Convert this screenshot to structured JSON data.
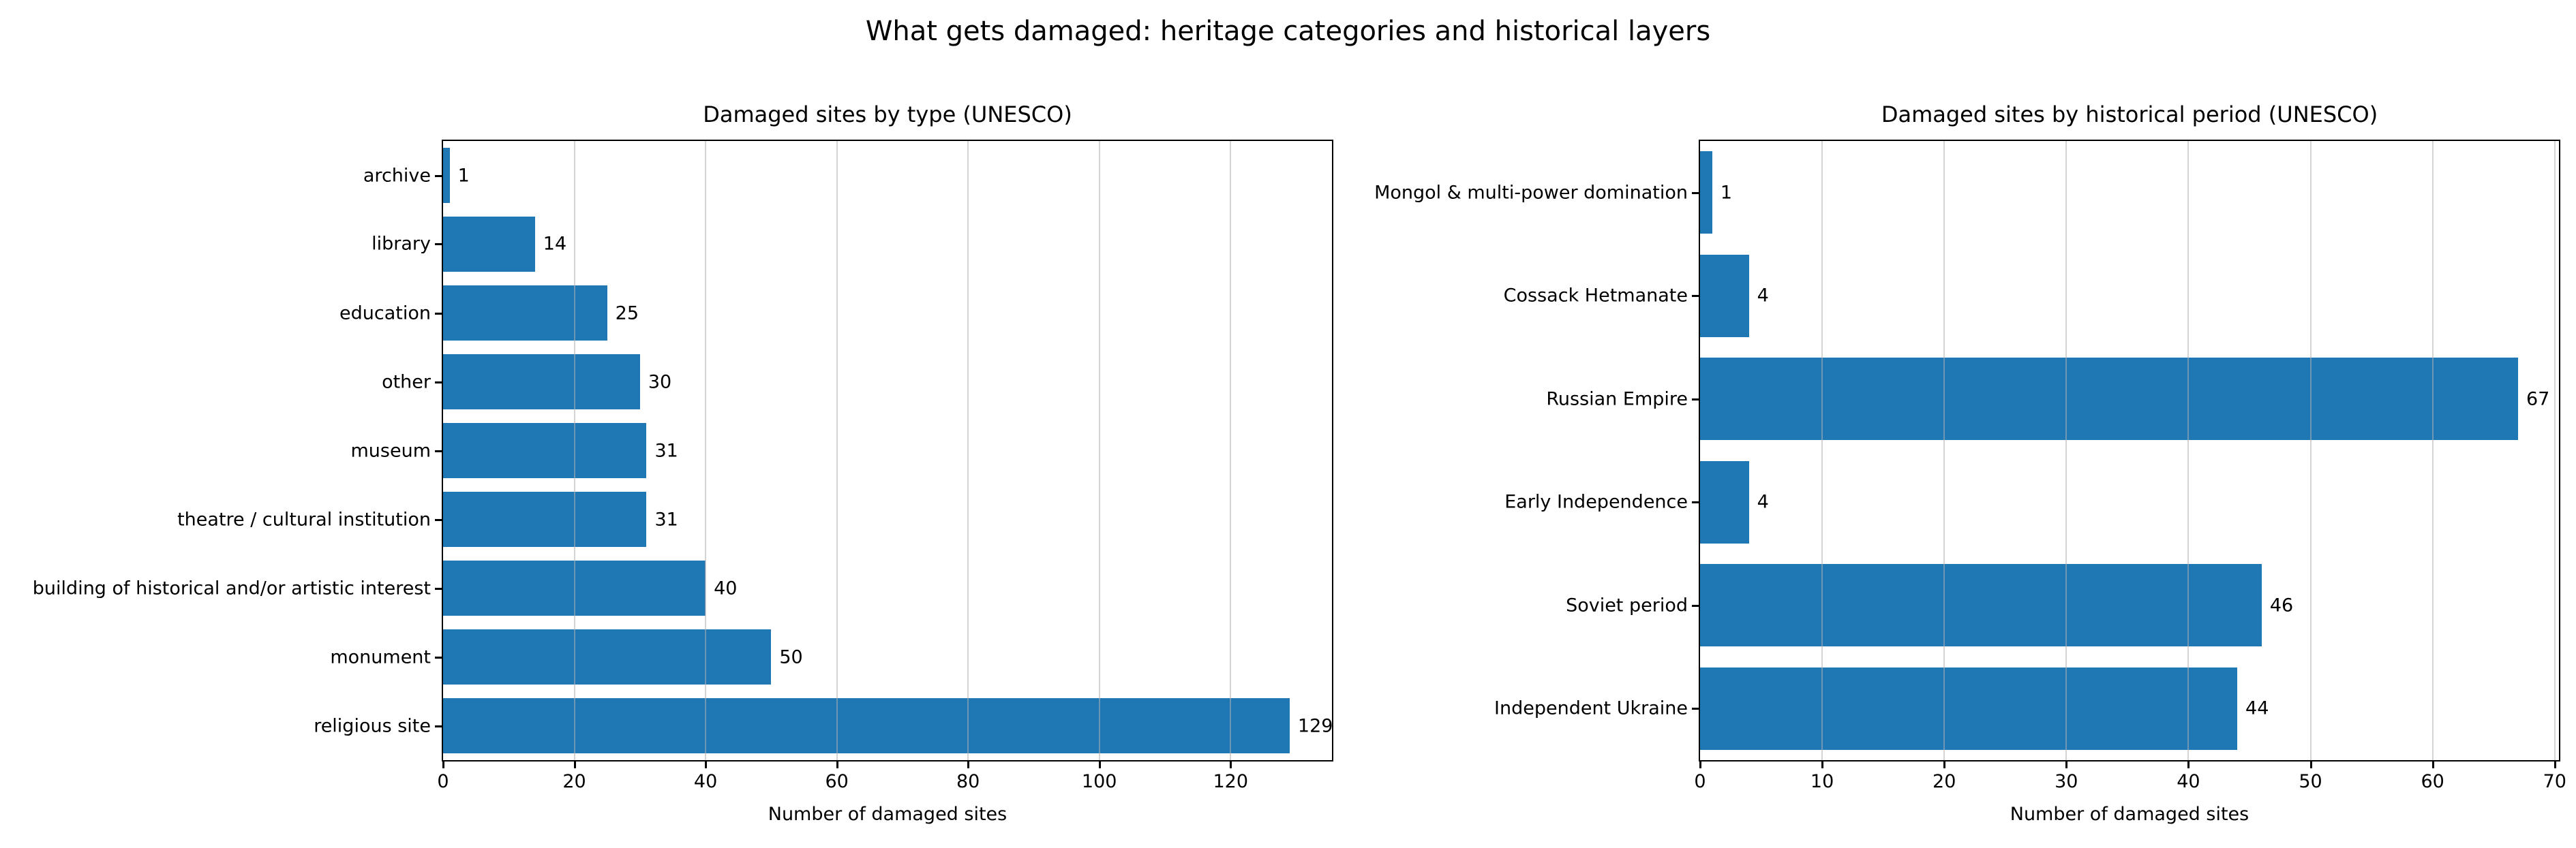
{
  "suptitle": "What gets damaged: heritage categories and historical layers",
  "bar_color": "#1f77b4",
  "text_color": "#000000",
  "grid_color": "rgba(176,176,176,0.55)",
  "chart_data": [
    {
      "type": "bar",
      "orientation": "horizontal",
      "title": "Damaged sites by type (UNESCO)",
      "xlabel": "Number of damaged sites",
      "categories": [
        "archive",
        "library",
        "education",
        "other",
        "museum",
        "theatre / cultural institution",
        "building of historical and/or artistic interest",
        "monument",
        "religious site"
      ],
      "values": [
        1,
        14,
        25,
        30,
        31,
        31,
        40,
        50,
        129
      ],
      "xticks": [
        0,
        20,
        40,
        60,
        80,
        100,
        120
      ],
      "xlim": [
        0,
        135.45
      ],
      "grid": true,
      "legend": null
    },
    {
      "type": "bar",
      "orientation": "horizontal",
      "title": "Damaged sites by historical period (UNESCO)",
      "xlabel": "Number of damaged sites",
      "categories": [
        "Mongol & multi-power domination",
        "Cossack Hetmanate",
        "Russian Empire",
        "Early Independence",
        "Soviet period",
        "Independent Ukraine"
      ],
      "values": [
        1,
        4,
        67,
        4,
        46,
        44
      ],
      "xticks": [
        0,
        10,
        20,
        30,
        40,
        50,
        60,
        70
      ],
      "xlim": [
        0,
        70.35
      ],
      "grid": true,
      "legend": null
    }
  ]
}
